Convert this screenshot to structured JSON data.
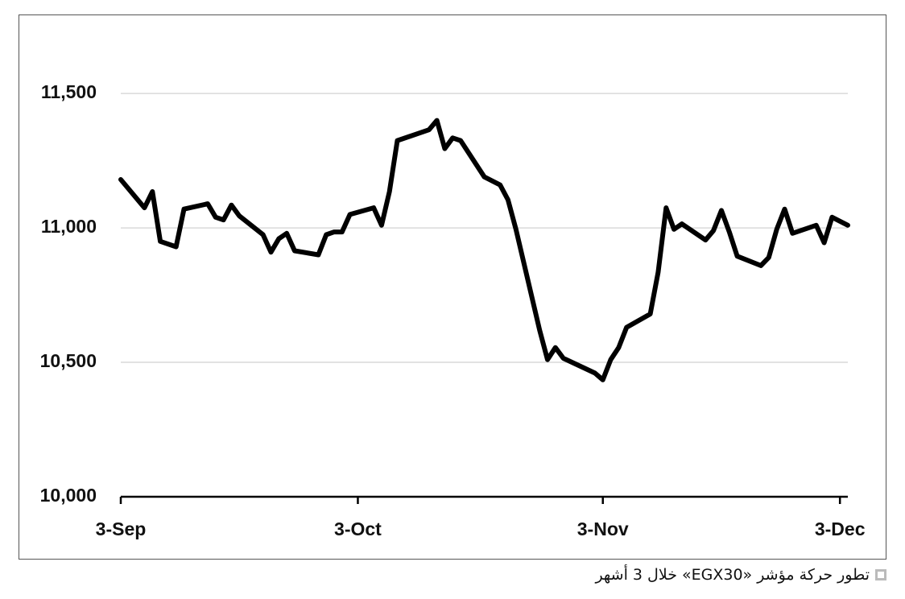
{
  "chart_data": {
    "type": "line",
    "caption": "تطور حركة مؤشر «EGX30» خلال 3 أشهر",
    "x": [
      "3-Sep",
      "6-Sep",
      "7-Sep",
      "8-Sep",
      "10-Sep",
      "11-Sep",
      "14-Sep",
      "15-Sep",
      "16-Sep",
      "17-Sep",
      "18-Sep",
      "21-Sep",
      "22-Sep",
      "23-Sep",
      "24-Sep",
      "25-Sep",
      "28-Sep",
      "29-Sep",
      "30-Sep",
      "1-Oct",
      "2-Oct",
      "5-Oct",
      "6-Oct",
      "7-Oct",
      "8-Oct",
      "12-Oct",
      "13-Oct",
      "14-Oct",
      "15-Oct",
      "16-Oct",
      "19-Oct",
      "21-Oct",
      "22-Oct",
      "23-Oct",
      "26-Oct",
      "27-Oct",
      "28-Oct",
      "29-Oct",
      "2-Nov",
      "3-Nov",
      "4-Nov",
      "5-Nov",
      "6-Nov",
      "9-Nov",
      "10-Nov",
      "11-Nov",
      "12-Nov",
      "13-Nov",
      "16-Nov",
      "17-Nov",
      "18-Nov",
      "19-Nov",
      "20-Nov",
      "23-Nov",
      "24-Nov",
      "25-Nov",
      "26-Nov",
      "27-Nov",
      "30-Nov",
      "1-Dec",
      "2-Dec",
      "3-Dec",
      "4-Dec"
    ],
    "series": [
      {
        "color": "#000000",
        "values": [
          11180,
          11075,
          11135,
          10950,
          10930,
          11070,
          11090,
          11040,
          11030,
          11085,
          11045,
          10975,
          10910,
          10960,
          10980,
          10915,
          10900,
          10975,
          10985,
          10985,
          11050,
          11075,
          11010,
          11135,
          11325,
          11365,
          11400,
          11295,
          11335,
          11325,
          11190,
          11160,
          11105,
          10995,
          10620,
          10510,
          10555,
          10515,
          10460,
          10435,
          10510,
          10555,
          10630,
          10680,
          10835,
          11075,
          10995,
          11015,
          10955,
          10990,
          11065,
          10985,
          10895,
          10860,
          10890,
          10995,
          11070,
          10980,
          11010,
          10945,
          11040,
          11025,
          11010
        ]
      }
    ],
    "xlim": [
      "3-Sep",
      "4-Dec"
    ],
    "xticks": [
      "3-Sep",
      "3-Oct",
      "3-Nov",
      "3-Dec"
    ],
    "ylim": [
      10000,
      11800
    ],
    "yticks": [
      {
        "value": 10000,
        "label": "10,000"
      },
      {
        "value": 10500,
        "label": "10,500"
      },
      {
        "value": 11000,
        "label": "11,000"
      },
      {
        "value": 11500,
        "label": "11,500"
      }
    ],
    "grid": true
  }
}
